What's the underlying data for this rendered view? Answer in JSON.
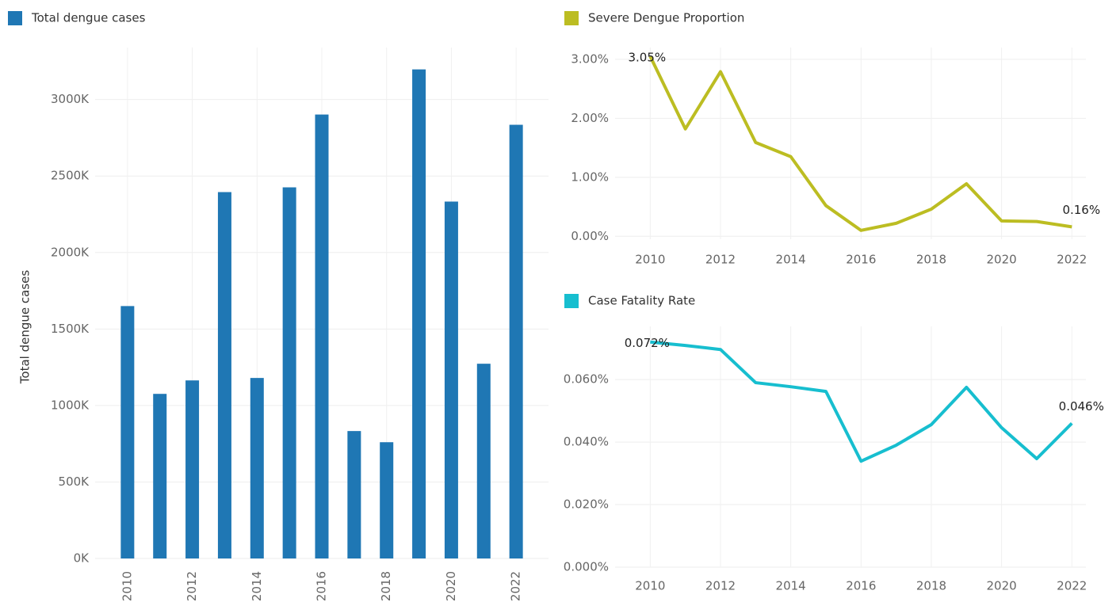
{
  "chart_data": [
    {
      "type": "bar",
      "series": [
        {
          "name": "Total dengue cases",
          "color": "#1f77b4",
          "values": [
            1650000,
            1076000,
            1164000,
            2395000,
            1180000,
            2426000,
            2902000,
            833000,
            760000,
            3197000,
            2333000,
            1273000,
            2835000
          ]
        }
      ],
      "y_label": "Total dengue cases",
      "x": [
        2010,
        2011,
        2012,
        2013,
        2014,
        2015,
        2016,
        2017,
        2018,
        2019,
        2020,
        2021,
        2022
      ],
      "xlim": [
        2009,
        2023
      ],
      "xticks": [
        2010,
        2012,
        2014,
        2016,
        2018,
        2020,
        2022
      ],
      "ylim": [
        0,
        3340000
      ],
      "yticks": [
        {
          "value": 0,
          "label": "0K"
        },
        {
          "value": 500000,
          "label": "500K"
        },
        {
          "value": 1000000,
          "label": "1000K"
        },
        {
          "value": 1500000,
          "label": "1500K"
        },
        {
          "value": 2000000,
          "label": "2000K"
        },
        {
          "value": 2500000,
          "label": "2500K"
        },
        {
          "value": 3000000,
          "label": "3000K"
        }
      ],
      "grid": true
    },
    {
      "type": "line",
      "series": [
        {
          "name": "Severe Dengue Proportion",
          "color": "#bcbd22",
          "values": [
            3.05,
            1.82,
            2.79,
            1.59,
            1.35,
            0.52,
            0.1,
            0.22,
            0.46,
            0.89,
            0.26,
            0.25,
            0.16
          ],
          "value_labels": [
            "3.05%",
            null,
            null,
            null,
            null,
            null,
            null,
            null,
            null,
            null,
            null,
            null,
            "0.16%"
          ]
        }
      ],
      "x": [
        2010,
        2011,
        2012,
        2013,
        2014,
        2015,
        2016,
        2017,
        2018,
        2019,
        2020,
        2021,
        2022
      ],
      "xlim": [
        2009,
        2022.4
      ],
      "xticks": [
        2010,
        2012,
        2014,
        2016,
        2018,
        2020,
        2022
      ],
      "ylim": [
        -0.05,
        3.2
      ],
      "yticks": [
        {
          "value": 0,
          "label": "0.00%"
        },
        {
          "value": 1,
          "label": "1.00%"
        },
        {
          "value": 2,
          "label": "2.00%"
        },
        {
          "value": 3,
          "label": "3.00%"
        }
      ],
      "grid": true
    },
    {
      "type": "line",
      "series": [
        {
          "name": "Case Fatality Rate",
          "color": "#17becf",
          "values": [
            0.072,
            0.0709,
            0.0696,
            0.059,
            0.0577,
            0.0562,
            0.0339,
            0.039,
            0.0456,
            0.0575,
            0.0446,
            0.0347,
            0.046
          ],
          "value_labels": [
            "0.072%",
            null,
            null,
            null,
            null,
            null,
            null,
            null,
            null,
            null,
            null,
            null,
            "0.046%"
          ]
        }
      ],
      "x": [
        2010,
        2011,
        2012,
        2013,
        2014,
        2015,
        2016,
        2017,
        2018,
        2019,
        2020,
        2021,
        2022
      ],
      "xlim": [
        2009,
        2022.4
      ],
      "xticks": [
        2010,
        2012,
        2014,
        2016,
        2018,
        2020,
        2022
      ],
      "ylim": [
        0,
        0.077
      ],
      "yticks": [
        {
          "value": 0,
          "label": "0.000%"
        },
        {
          "value": 0.02,
          "label": "0.020%"
        },
        {
          "value": 0.04,
          "label": "0.040%"
        },
        {
          "value": 0.06,
          "label": "0.060%"
        }
      ],
      "grid": true
    }
  ]
}
